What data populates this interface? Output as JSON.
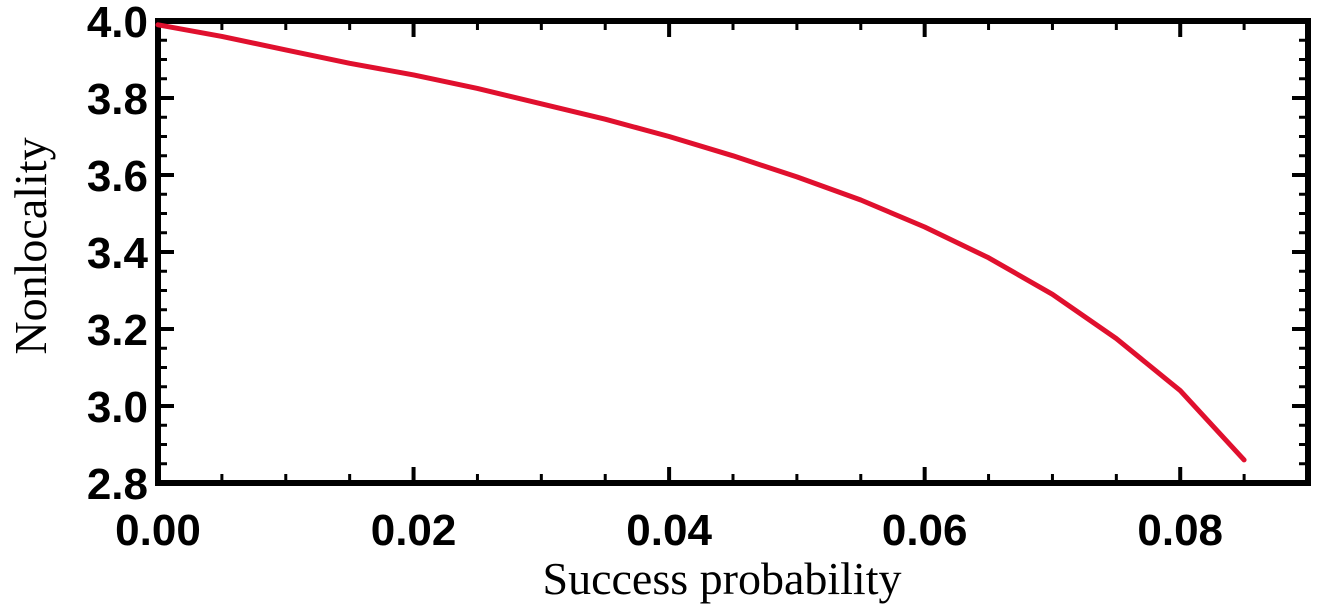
{
  "chart_data": {
    "type": "line",
    "title": "",
    "xlabel": "Success probability",
    "ylabel": "Nonlocality",
    "xlim": [
      0.0,
      0.09
    ],
    "ylim": [
      2.8,
      4.0
    ],
    "x_ticks": [
      0.0,
      0.02,
      0.04,
      0.06,
      0.08
    ],
    "x_tick_labels": [
      "0.00",
      "0.02",
      "0.04",
      "0.06",
      "0.08"
    ],
    "y_ticks": [
      2.8,
      3.0,
      3.2,
      3.4,
      3.6,
      3.8,
      4.0
    ],
    "y_tick_labels": [
      "2.8",
      "3.0",
      "3.2",
      "3.4",
      "3.6",
      "3.8",
      "4.0"
    ],
    "grid": false,
    "series": [
      {
        "color": "#e0102e",
        "x": [
          0.0,
          0.005,
          0.01,
          0.015,
          0.02,
          0.025,
          0.03,
          0.035,
          0.04,
          0.045,
          0.05,
          0.055,
          0.06,
          0.065,
          0.07,
          0.075,
          0.08,
          0.085
        ],
        "y": [
          3.99,
          3.96,
          3.925,
          3.89,
          3.86,
          3.825,
          3.785,
          3.745,
          3.7,
          3.65,
          3.595,
          3.535,
          3.465,
          3.385,
          3.29,
          3.175,
          3.04,
          2.86
        ]
      }
    ]
  }
}
